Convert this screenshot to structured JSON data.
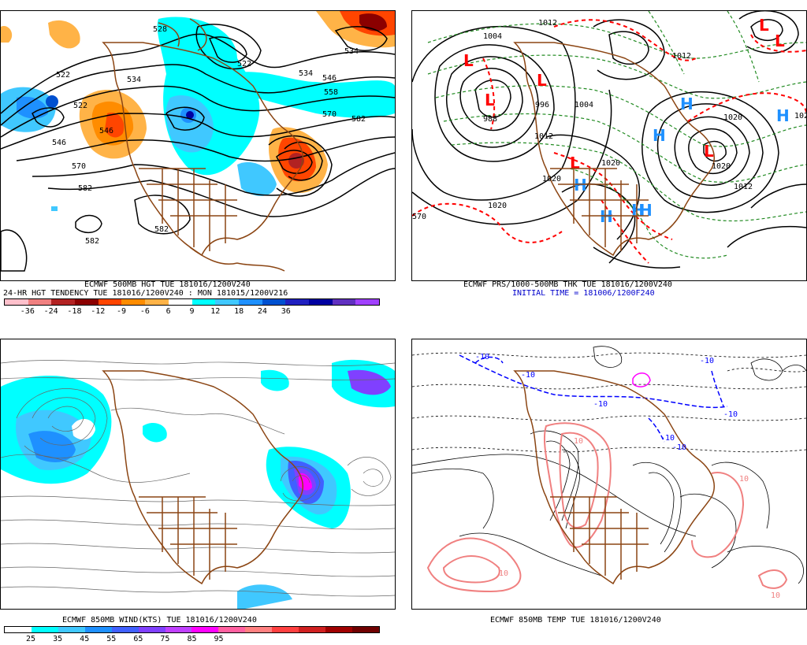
{
  "panels": {
    "p500": {
      "caption_line1": "ECMWF 500MB HGT TUE 181016/1200V240",
      "caption_line2": "24-HR HGT TENDENCY TUE 181016/1200V240 : MON 181015/1200V216",
      "contour_labels": [
        "528",
        "522",
        "534",
        "546",
        "534",
        "522",
        "534",
        "546",
        "570",
        "558",
        "582",
        "570",
        "582",
        "582",
        "582",
        "546",
        "558",
        "570",
        "522",
        "540"
      ],
      "colorbar_labels": [
        "-36",
        "-24",
        "-18",
        "-12",
        "-9",
        "-6",
        "6",
        "9",
        "12",
        "18",
        "24",
        "36"
      ],
      "colorbar_colors": [
        "#ffc0cb",
        "#f08080",
        "#b22222",
        "#8b0000",
        "#ff4500",
        "#ff8c00",
        "#ffb347",
        "#ffffff",
        "#00ffff",
        "#40c8ff",
        "#1e90ff",
        "#0050d0",
        "#2020c0",
        "#0000a0",
        "#6030c0",
        "#a040ff"
      ]
    },
    "pmslp": {
      "caption_line1": "ECMWF PRS/1000-500MB THK TUE 181016/1200V240",
      "caption_line2": "INITIAL TIME = 181006/1200F240",
      "contour_labels": [
        "1012",
        "1004",
        "988",
        "996",
        "1004",
        "1012",
        "1020",
        "1020",
        "1012",
        "1004",
        "1020",
        "1028",
        "1028",
        "1020",
        "1012",
        "996",
        "1004",
        "1012",
        "1020",
        "570"
      ],
      "highs": [
        "H",
        "H",
        "H",
        "H",
        "H",
        "H",
        "H"
      ],
      "lows": [
        "L",
        "L",
        "L",
        "L",
        "L",
        "L",
        "L"
      ]
    },
    "pwind": {
      "caption_line1": "ECMWF 850MB WIND(KTS) TUE 181016/1200V240",
      "colorbar_labels": [
        "25",
        "35",
        "45",
        "55",
        "65",
        "75",
        "85",
        "95"
      ],
      "colorbar_colors": [
        "#ffffff",
        "#00ffff",
        "#40c8ff",
        "#1e90ff",
        "#4060ff",
        "#8040ff",
        "#c040ff",
        "#ff00ff",
        "#ff60a0",
        "#ff8080",
        "#ff4040",
        "#d02020",
        "#a00000",
        "#700000"
      ]
    },
    "ptemp": {
      "caption_line1": "ECMWF 850MB TEMP TUE 181016/1200V240",
      "contour_labels": [
        "-10",
        "-10",
        "-10",
        "-10",
        "-10",
        "-10",
        "-10",
        "10",
        "10",
        "10",
        "10"
      ]
    }
  },
  "colors": {
    "coast": "#8b4513",
    "contour": "#000000",
    "thickness_cold": "#228b22",
    "thickness_warm": "#ff0000",
    "high": "#1e90ff",
    "low": "#ff0000",
    "temp_cold": "#0000ff",
    "temp_warm": "#f08080",
    "temp_hot": "#ff00ff"
  }
}
